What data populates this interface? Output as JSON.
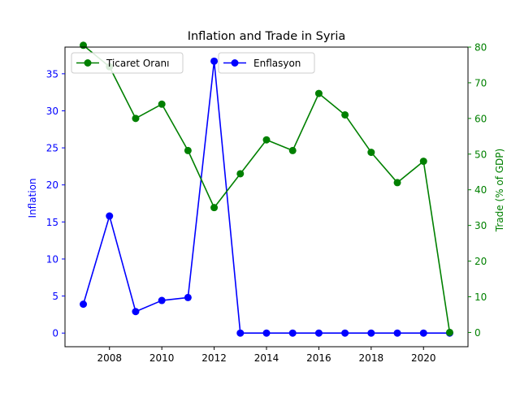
{
  "chart_data": {
    "type": "line",
    "title": "Inflation and Trade in Syria",
    "x": [
      2007,
      2008,
      2009,
      2010,
      2011,
      2012,
      2013,
      2014,
      2015,
      2016,
      2017,
      2018,
      2019,
      2020,
      2021
    ],
    "x_ticks": [
      "2008",
      "2010",
      "2012",
      "2014",
      "2016",
      "2018",
      "2020"
    ],
    "xlim": [
      2006.3,
      2021.7
    ],
    "left_axis": {
      "label": "Inflation",
      "color": "#0000ff",
      "ylim": [
        -1.84,
        38.6
      ],
      "ticks": [
        "0",
        "5",
        "10",
        "15",
        "20",
        "25",
        "30",
        "35"
      ]
    },
    "right_axis": {
      "label": "Trade (% of GDP)",
      "color": "#008000",
      "ylim": [
        -4,
        80
      ],
      "ticks": [
        "0",
        "10",
        "20",
        "30",
        "40",
        "50",
        "60",
        "70",
        "80"
      ]
    },
    "series": [
      {
        "name": "Enflasyon",
        "axis": "left",
        "color": "#0000ff",
        "values": [
          3.9,
          15.8,
          2.9,
          4.4,
          4.8,
          36.7,
          0,
          0,
          0,
          0,
          0,
          0,
          0,
          0,
          0
        ]
      },
      {
        "name": "Ticaret Oranı",
        "axis": "right",
        "color": "#008000",
        "values": [
          80.5,
          74.5,
          60.0,
          64.0,
          51.0,
          35.0,
          44.5,
          54.0,
          51.0,
          67.0,
          61.0,
          50.5,
          42.0,
          48.0,
          0
        ]
      }
    ],
    "legends": [
      {
        "series": "Ticaret Oranı",
        "placement": "upper-left"
      },
      {
        "series": "Enflasyon",
        "placement": "upper-center"
      }
    ],
    "grid": false
  }
}
